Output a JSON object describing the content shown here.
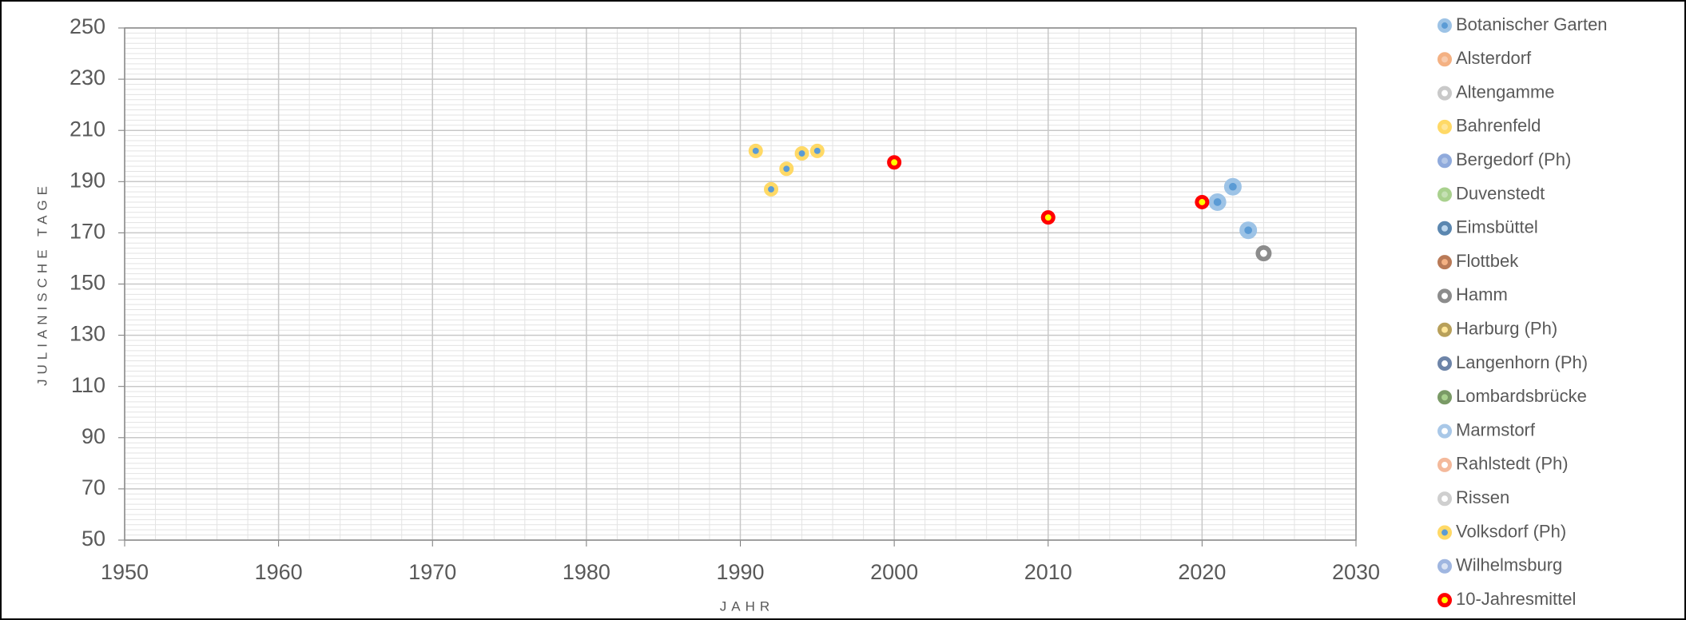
{
  "chart_data": {
    "type": "scatter",
    "x_label": "JAHR",
    "y_label": "JULIANISCHE TAGE",
    "xlim": [
      1950,
      2030
    ],
    "xticks": [
      1950,
      1960,
      1970,
      1980,
      1990,
      2000,
      2010,
      2020,
      2030
    ],
    "ylim": [
      50,
      250
    ],
    "yticks": [
      50,
      70,
      90,
      110,
      130,
      150,
      170,
      190,
      210,
      230,
      250
    ],
    "grid": true,
    "minor_grid": {
      "x": 2,
      "y": 2
    },
    "legend": "right",
    "series": [
      {
        "name": "Botanischer Garten",
        "color": "#9dc3e6",
        "center": "#5b9bd5",
        "marker_size": 11,
        "x": [
          2021,
          2022,
          2023
        ],
        "values": [
          182,
          188,
          171
        ]
      },
      {
        "name": "Alsterdorf",
        "color": "#f4b183",
        "center": "#f8cbad",
        "marker_size": 9,
        "x": [],
        "values": []
      },
      {
        "name": "Altengamme",
        "color": "#c9c9c9",
        "center": "#ffffff",
        "marker_size": 9,
        "x": [],
        "values": []
      },
      {
        "name": "Bahrenfeld",
        "color": "#ffd966",
        "center": "#ffe699",
        "marker_size": 9,
        "x": [],
        "values": []
      },
      {
        "name": "Bergedorf (Ph)",
        "color": "#8faadc",
        "center": "#b4c7e7",
        "marker_size": 9,
        "x": [],
        "values": []
      },
      {
        "name": "Duvenstedt",
        "color": "#a9d18e",
        "center": "#c5e0b4",
        "marker_size": 9,
        "x": [],
        "values": []
      },
      {
        "name": "Eimsbüttel",
        "color": "#5b87b0",
        "center": "#bdd7ee",
        "marker_size": 9,
        "x": [],
        "values": []
      },
      {
        "name": "Flottbek",
        "color": "#b97a57",
        "center": "#f4b183",
        "marker_size": 9,
        "x": [],
        "values": []
      },
      {
        "name": "Hamm",
        "color": "#8c8c8c",
        "center": "#ffffff",
        "marker_size": 10,
        "x": [
          2024
        ],
        "values": [
          162
        ]
      },
      {
        "name": "Harburg (Ph)",
        "color": "#b8a05a",
        "center": "#ffe699",
        "marker_size": 9,
        "x": [],
        "values": []
      },
      {
        "name": "Langenhorn (Ph)",
        "color": "#6d84a8",
        "center": "#ffffff",
        "marker_size": 9,
        "x": [],
        "values": []
      },
      {
        "name": "Lombardsbrücke",
        "color": "#7a9a66",
        "center": "#a9d18e",
        "marker_size": 9,
        "x": [],
        "values": []
      },
      {
        "name": "Marmstorf",
        "color": "#a9c8e8",
        "center": "#ffffff",
        "marker_size": 9,
        "x": [],
        "values": []
      },
      {
        "name": "Rahlstedt (Ph)",
        "color": "#f4b99b",
        "center": "#ffffff",
        "marker_size": 9,
        "x": [],
        "values": []
      },
      {
        "name": "Rissen",
        "color": "#cfcfcf",
        "center": "#ffffff",
        "marker_size": 9,
        "x": [],
        "values": []
      },
      {
        "name": "Volksdorf (Ph)",
        "color": "#ffd966",
        "center": "#5b9bd5",
        "marker_size": 9,
        "x": [
          1991,
          1992,
          1993,
          1994,
          1995
        ],
        "values": [
          202,
          187,
          195,
          201,
          202
        ]
      },
      {
        "name": "Wilhelmsburg",
        "color": "#9fb6e0",
        "center": "#dae3f3",
        "marker_size": 9,
        "x": [],
        "values": []
      },
      {
        "name": "10-Jahresmittel",
        "color": "#ff0000",
        "center": "#ffff00",
        "marker_size": 9,
        "x": [
          2000,
          2010,
          2020
        ],
        "values": [
          197.5,
          176,
          182
        ]
      }
    ]
  }
}
